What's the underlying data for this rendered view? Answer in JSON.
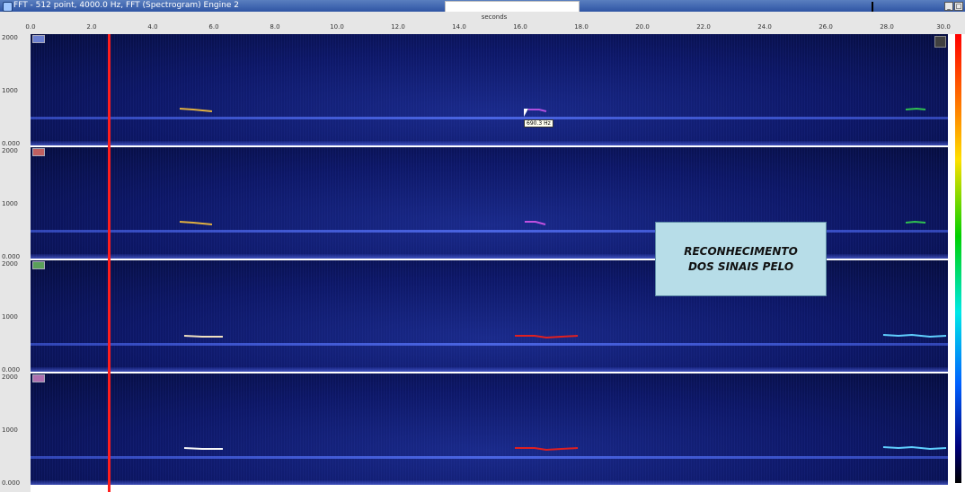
{
  "window": {
    "title": "FFT - 512 point, 4000.0 Hz, FFT (Spectrogram) Engine 2",
    "minimize_label": "_",
    "maximize_label": "□"
  },
  "x_axis": {
    "title": "seconds",
    "ticks": [
      "0.0",
      "2.0",
      "4.0",
      "6.0",
      "8.0",
      "10.0",
      "12.0",
      "14.0",
      "16.0",
      "18.0",
      "20.0",
      "22.0",
      "24.0",
      "26.0",
      "28.0",
      "30.0"
    ]
  },
  "panels": [
    {
      "tag": "ch1",
      "tag_color": "#6b7fd0",
      "y_top": "2000",
      "y_mid": "1000",
      "y_bottom": "0.000"
    },
    {
      "tag": "ch2",
      "tag_color": "#c06060",
      "y_top": "2000",
      "y_mid": "1000",
      "y_bottom": "0.000"
    },
    {
      "tag": "ch3",
      "tag_color": "#5aa05a",
      "y_top": "2000",
      "y_mid": "1000",
      "y_bottom": "0.000"
    },
    {
      "tag": "ch4",
      "tag_color": "#b070b0",
      "y_top": "2000",
      "y_mid": "1000",
      "y_bottom": "0.000"
    }
  ],
  "cursor_readout": "690.3 Hz",
  "annotation": {
    "line1": "RECONHECIMENTO",
    "line2": "DOS SINAIS PELO"
  },
  "colors": {
    "cursor_line": "#ff1e1e",
    "annotation_bg": "#b7dde8"
  }
}
